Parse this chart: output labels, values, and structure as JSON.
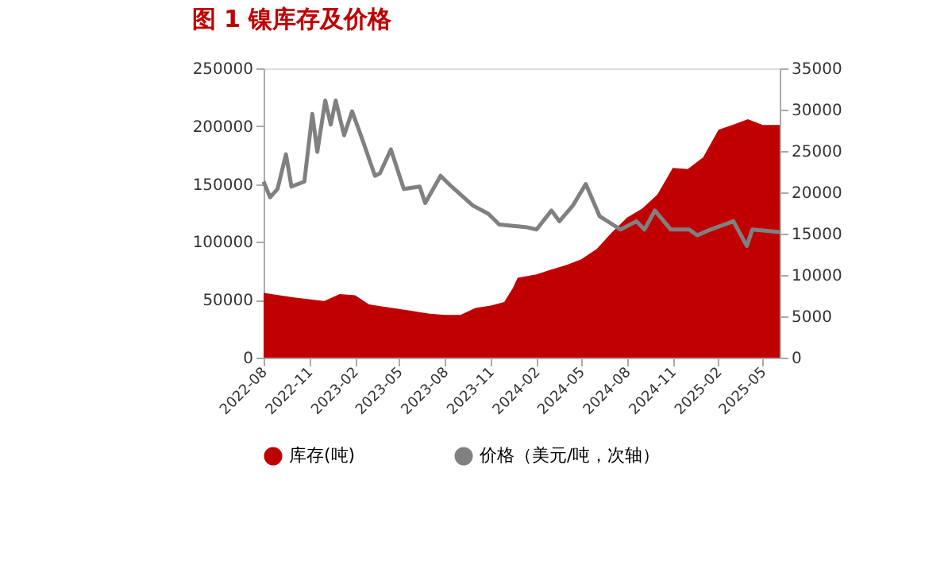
{
  "chart_data": {
    "type": "area",
    "title": "图 1 镍库存及价格",
    "legend": "bottom",
    "grid": false,
    "xlim": [
      "2022-08-01",
      "2025-06-04"
    ],
    "xticks": [
      "2022-08",
      "2022-11",
      "2023-02",
      "2023-05",
      "2023-08",
      "2023-11",
      "2024-02",
      "2024-05",
      "2024-08",
      "2024-11",
      "2025-02",
      "2025-05"
    ],
    "ylim": [
      0,
      250000
    ],
    "yticks": [
      0,
      50000,
      100000,
      150000,
      200000,
      250000
    ],
    "y2lim": [
      0,
      35000
    ],
    "y2ticks": [
      0,
      5000,
      10000,
      15000,
      20000,
      25000,
      30000,
      35000
    ],
    "series": [
      {
        "name": "库存(吨)",
        "color": "#c00000",
        "x": [
          "2022-08-01",
          "2022-10-01",
          "2022-12-01",
          "2023-01-01",
          "2023-02-01",
          "2023-03-01",
          "2023-04-01",
          "2023-05-01",
          "2023-06-01",
          "2023-07-01",
          "2023-08-01",
          "2023-09-01",
          "2023-10-01",
          "2023-11-01",
          "2023-11-28",
          "2023-12-15",
          "2023-12-25",
          "2024-02-01",
          "2024-03-01",
          "2024-04-01",
          "2024-05-01",
          "2024-06-01",
          "2024-07-01",
          "2024-08-01",
          "2024-09-01",
          "2024-10-01",
          "2024-11-01",
          "2024-12-01",
          "2025-01-01",
          "2025-02-01",
          "2025-03-01",
          "2025-04-01",
          "2025-05-01",
          "2025-06-04"
        ],
        "values": [
          56000,
          52000,
          49000,
          55000,
          54000,
          46000,
          44000,
          42000,
          40000,
          38000,
          37000,
          37000,
          43000,
          45000,
          48000,
          60000,
          69000,
          72000,
          76000,
          80000,
          85000,
          94000,
          108000,
          121000,
          129000,
          141000,
          164000,
          163000,
          173000,
          197000,
          201000,
          206000,
          201000,
          201000
        ]
      },
      {
        "name": "价格（美元/吨，次轴）",
        "type": "line",
        "axis": "y2",
        "color": "#808080",
        "x": [
          "2022-08-01",
          "2022-08-14",
          "2022-08-29",
          "2022-09-15",
          "2022-09-26",
          "2022-10-22",
          "2022-11-07",
          "2022-11-17",
          "2022-12-03",
          "2022-12-14",
          "2022-12-24",
          "2023-01-10",
          "2023-01-26",
          "2023-02-15",
          "2023-03-13",
          "2023-03-23",
          "2023-04-14",
          "2023-05-10",
          "2023-06-11",
          "2023-06-22",
          "2023-07-23",
          "2023-08-14",
          "2023-09-26",
          "2023-10-27",
          "2023-11-18",
          "2024-01-10",
          "2024-02-01",
          "2024-03-02",
          "2024-03-18",
          "2024-04-14",
          "2024-05-10",
          "2024-06-07",
          "2024-07-19",
          "2024-08-20",
          "2024-09-05",
          "2024-09-26",
          "2024-10-28",
          "2024-12-04",
          "2024-12-20",
          "2025-01-16",
          "2025-03-03",
          "2025-03-30",
          "2025-04-10",
          "2025-06-04"
        ],
        "values": [
          21300,
          19400,
          20400,
          24600,
          20700,
          21300,
          29500,
          24900,
          31100,
          28200,
          31100,
          26900,
          29800,
          26500,
          22000,
          22300,
          25200,
          20400,
          20700,
          18700,
          22000,
          20700,
          18400,
          17400,
          16100,
          15800,
          15500,
          17800,
          16500,
          18400,
          21000,
          17100,
          15500,
          16500,
          15500,
          17800,
          15500,
          15500,
          14800,
          15500,
          16500,
          13500,
          15500,
          15200
        ]
      }
    ]
  }
}
